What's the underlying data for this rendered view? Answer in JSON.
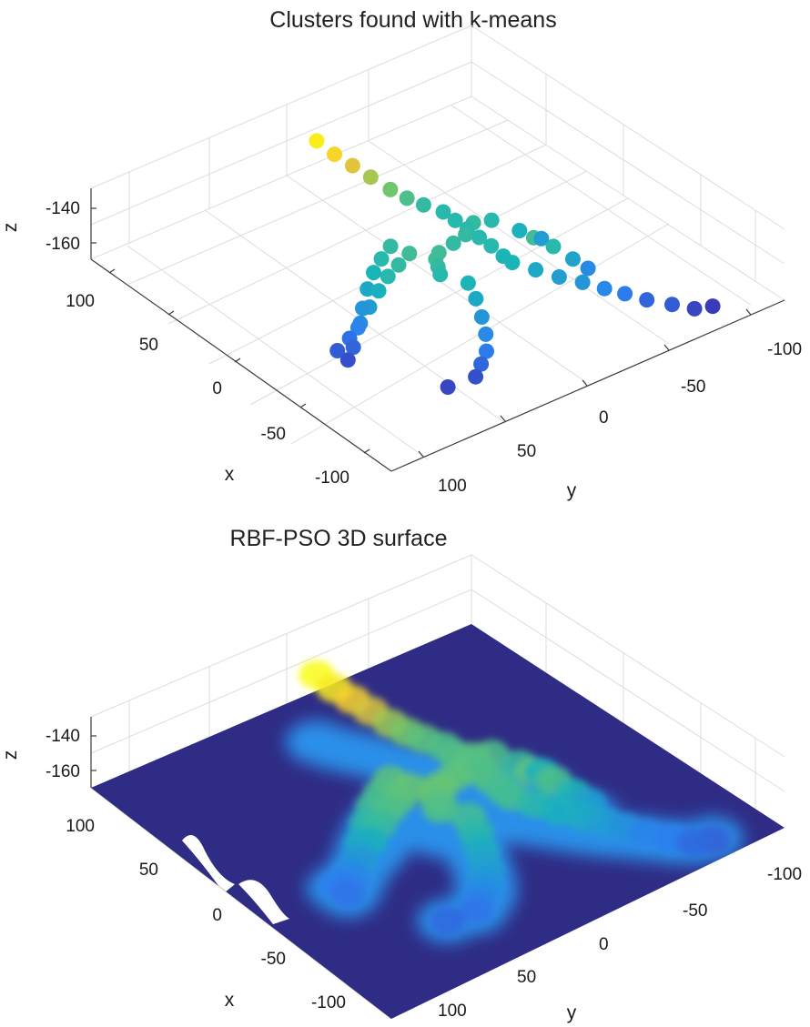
{
  "chart_data": [
    {
      "type": "scatter",
      "title": "Clusters found with k-means",
      "xlabel": "x",
      "ylabel": "y",
      "zlabel": "z",
      "xlim": [
        -100,
        100
      ],
      "ylim": [
        -100,
        100
      ],
      "xticks": [
        "100",
        "50",
        "0",
        "-50",
        "-100"
      ],
      "yticks": [
        "-100",
        "-50",
        "0",
        "50",
        "100"
      ],
      "zticks": [
        "-140",
        "-160"
      ],
      "grid": true,
      "colormap": [
        "#3e26a8",
        "#2c7ff0",
        "#19b5b9",
        "#7fc95f",
        "#f7c434",
        "#f9fb15"
      ],
      "series": [
        {
          "points": [
            [
              70,
              5,
              -130
            ],
            [
              62,
              2,
              -134
            ],
            [
              55,
              -2,
              -138
            ],
            [
              48,
              -6,
              -142
            ],
            [
              40,
              -10,
              -146
            ],
            [
              34,
              -14,
              -149
            ],
            [
              28,
              -18,
              -151
            ],
            [
              20,
              -22,
              -152
            ],
            [
              12,
              -22,
              -152
            ],
            [
              4,
              -22,
              -152
            ],
            [
              -4,
              -22,
              -152
            ],
            [
              -12,
              -22,
              -152
            ],
            [
              -20,
              -22,
              -153
            ],
            [
              -2,
              -10,
              -151
            ],
            [
              0,
              -18,
              -151
            ],
            [
              5,
              -26,
              -151
            ],
            [
              3,
              -34,
              -152
            ],
            [
              -8,
              -40,
              -154
            ],
            [
              -15,
              -46,
              -157
            ],
            [
              -5,
              0,
              -150
            ],
            [
              -8,
              4,
              -150
            ],
            [
              -12,
              6,
              -151
            ],
            [
              -16,
              8,
              -152
            ],
            [
              2,
              10,
              -150
            ],
            [
              -1,
              18,
              -151
            ],
            [
              -4,
              26,
              -152
            ],
            [
              -8,
              34,
              -154
            ],
            [
              -12,
              42,
              -157
            ],
            [
              -16,
              50,
              -160
            ],
            [
              -19,
              58,
              -163
            ],
            [
              -21,
              66,
              -165
            ],
            [
              12,
              12,
              -151
            ],
            [
              8,
              20,
              -152
            ],
            [
              3,
              28,
              -153
            ],
            [
              -3,
              36,
              -155
            ],
            [
              -10,
              44,
              -158
            ],
            [
              -17,
              52,
              -161
            ],
            [
              -24,
              60,
              -164
            ],
            [
              -28,
              66,
              -166
            ],
            [
              -27,
              2,
              -153
            ],
            [
              -36,
              5,
              -155
            ],
            [
              -45,
              9,
              -158
            ],
            [
              -54,
              14,
              -160
            ],
            [
              -62,
              20,
              -162
            ],
            [
              -66,
              26,
              -164
            ],
            [
              -70,
              32,
              -166
            ],
            [
              -68,
              45,
              -167
            ],
            [
              -26,
              -22,
              -153
            ],
            [
              -34,
              -28,
              -155
            ],
            [
              -42,
              -34,
              -157
            ],
            [
              -50,
              -40,
              -158
            ],
            [
              -57,
              -46,
              -160
            ],
            [
              -63,
              -52,
              -162
            ],
            [
              -70,
              -58,
              -164
            ],
            [
              -78,
              -65,
              -165
            ],
            [
              -84,
              -72,
              -167
            ],
            [
              -86,
              -80,
              -168
            ],
            [
              -20,
              -38,
              -150
            ],
            [
              -28,
              -42,
              -152
            ],
            [
              -36,
              -46,
              -156
            ],
            [
              -41,
              -50,
              -160
            ]
          ]
        }
      ]
    },
    {
      "type": "surface",
      "title": "RBF-PSO 3D surface",
      "xlabel": "x",
      "ylabel": "y",
      "zlabel": "z",
      "xlim": [
        -100,
        100
      ],
      "ylim": [
        -100,
        100
      ],
      "xticks": [
        "100",
        "50",
        "0",
        "-50",
        "-100"
      ],
      "yticks": [
        "-100",
        "-50",
        "0",
        "50",
        "100"
      ],
      "zticks": [
        "-140",
        "-160"
      ],
      "grid": true,
      "colormap": [
        "#3e26a8",
        "#2c7ff0",
        "#19b5b9",
        "#7fc95f",
        "#f7c434",
        "#f9fb15"
      ],
      "base_color": "#2f2c85"
    }
  ]
}
